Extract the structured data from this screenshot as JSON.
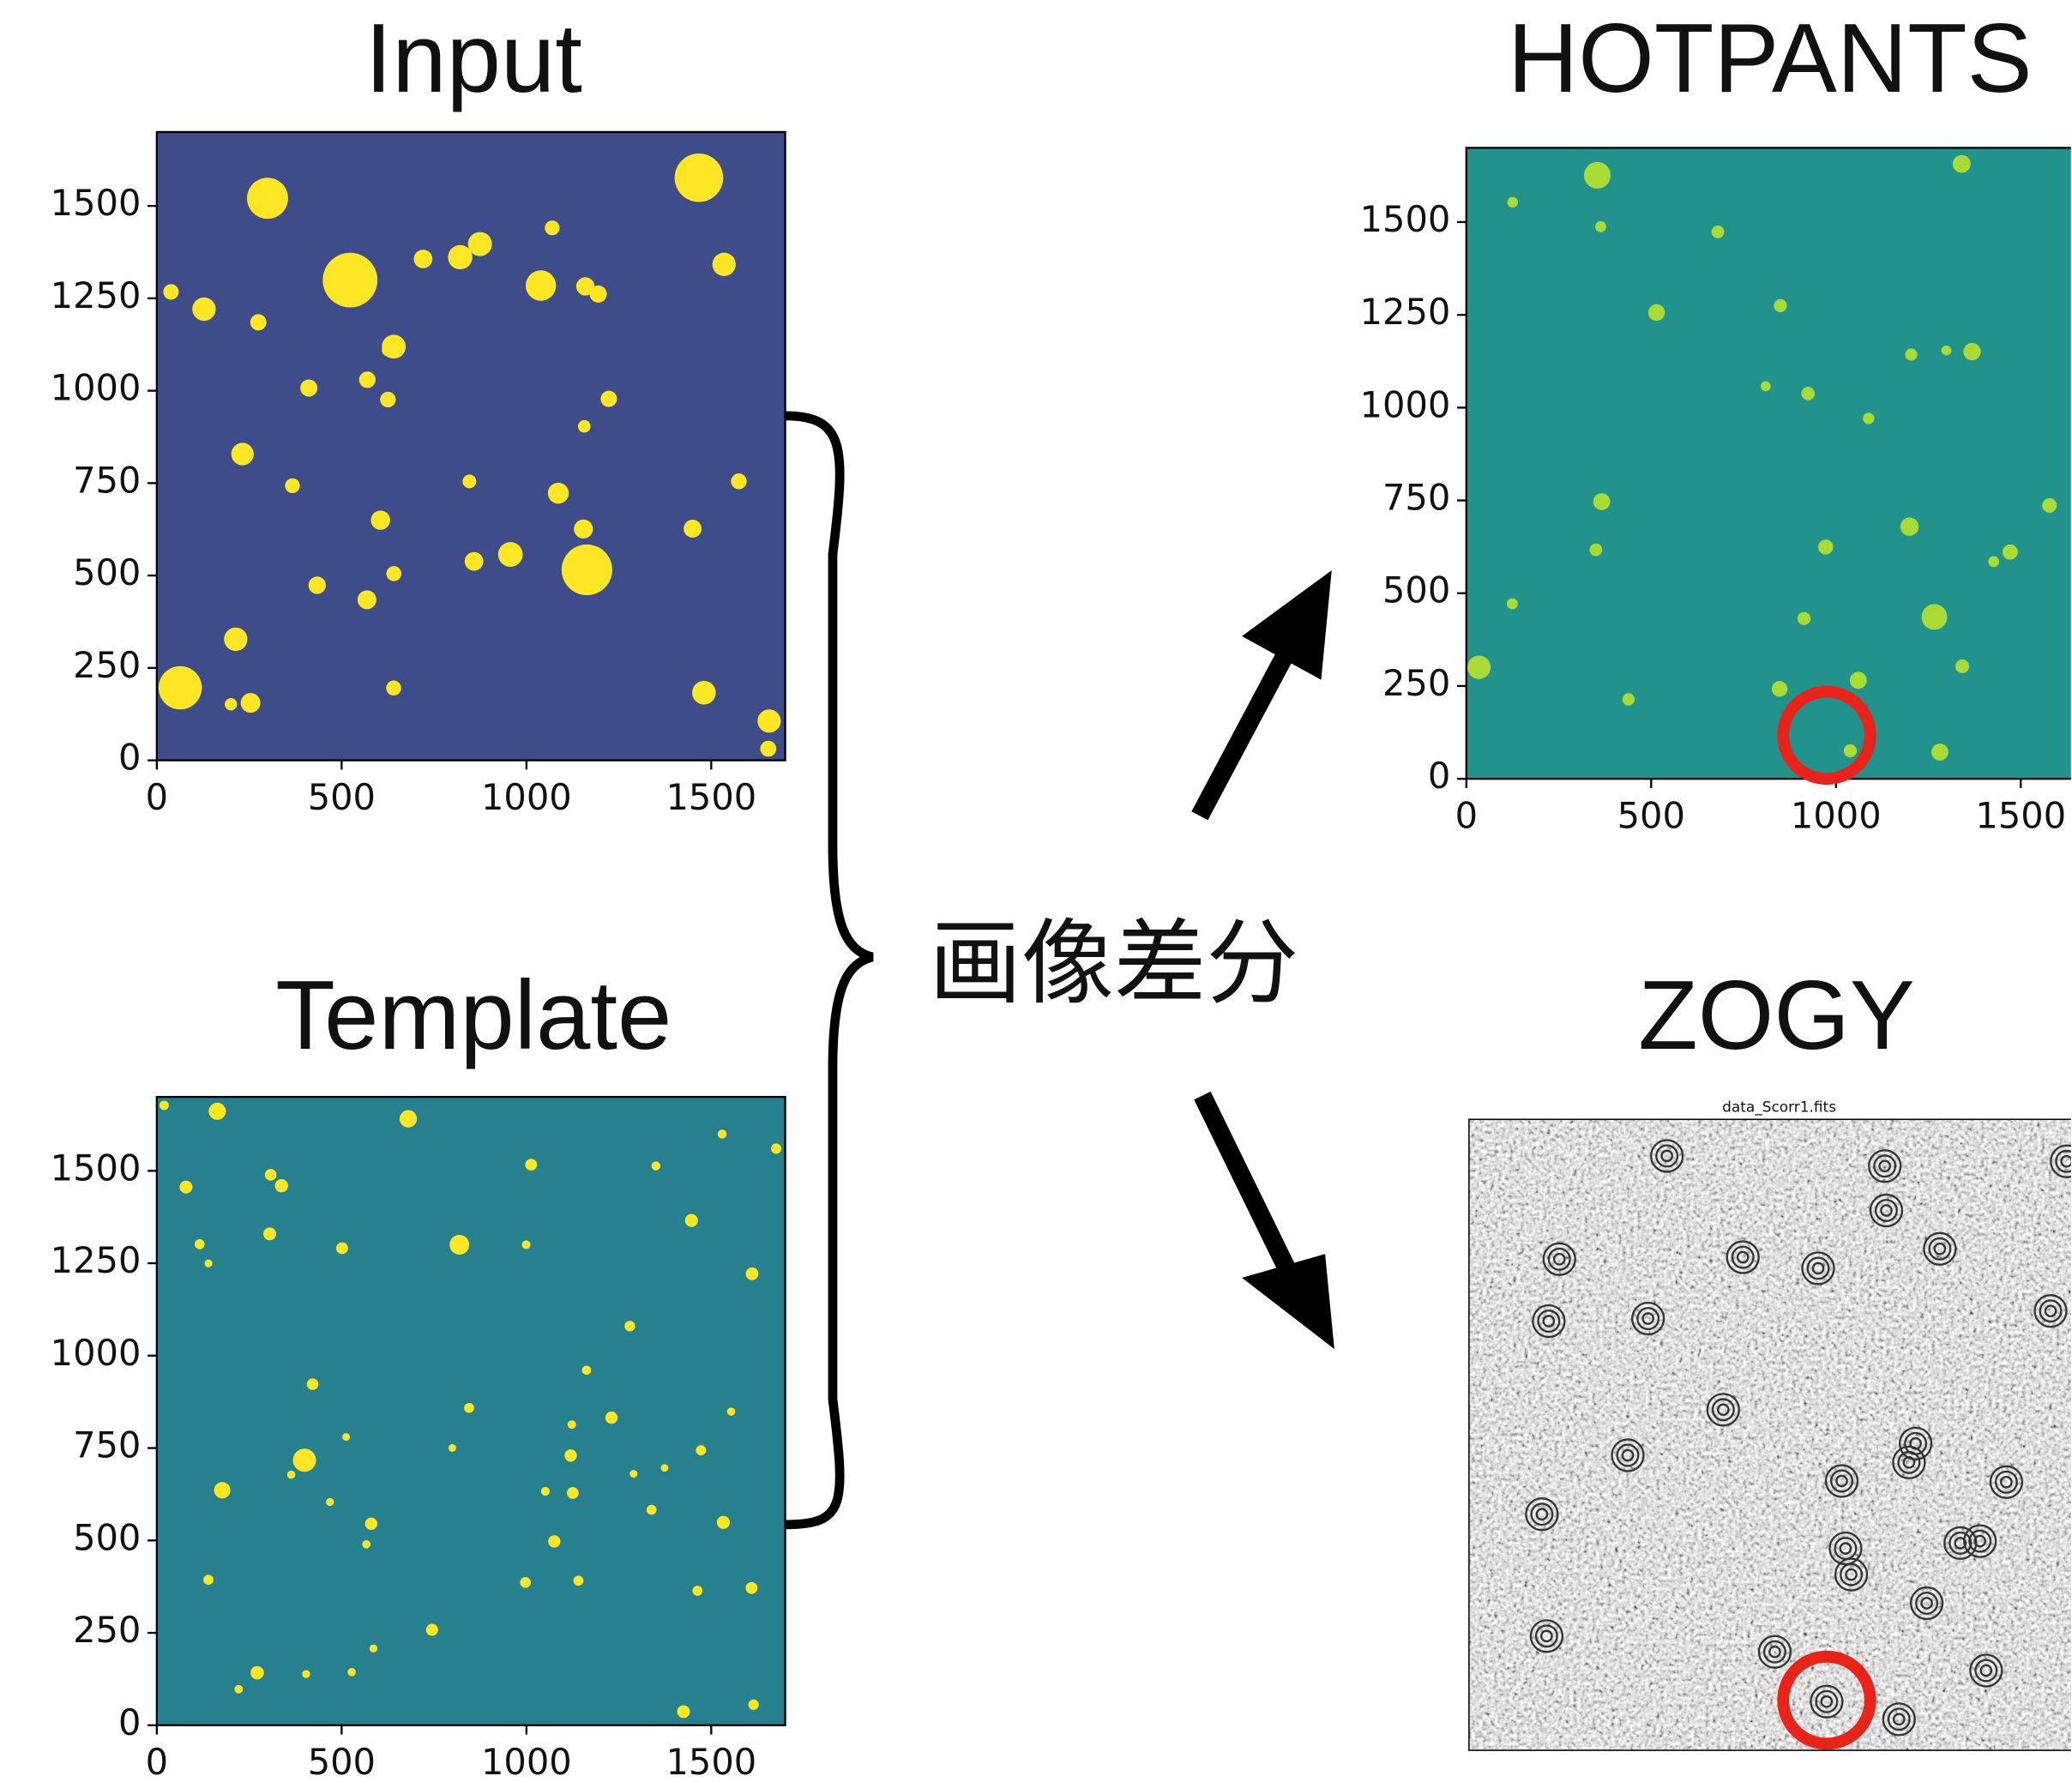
{
  "panels": [
    {
      "title": "Input",
      "xlim": [
        0,
        1700
      ],
      "ylim": [
        0,
        1700
      ],
      "xticks": [
        0,
        500,
        1000,
        1500
      ],
      "yticks": [
        0,
        250,
        500,
        750,
        1000,
        1250,
        1500
      ]
    },
    {
      "title": "Template",
      "xlim": [
        0,
        1700
      ],
      "ylim": [
        0,
        1700
      ],
      "xticks": [
        0,
        500,
        1000,
        1500
      ],
      "yticks": [
        0,
        250,
        500,
        750,
        1000,
        1250,
        1500
      ]
    },
    {
      "title": "HOTPANTS",
      "xlim": [
        0,
        1700
      ],
      "ylim": [
        0,
        1700
      ],
      "xticks": [
        0,
        500,
        1000,
        1500
      ],
      "yticks": [
        0,
        250,
        500,
        750,
        1000,
        1250,
        1500
      ]
    },
    {
      "title": "ZOGY",
      "subtitle": "data_Scorr1.fits"
    }
  ],
  "operation": "画像差分"
}
